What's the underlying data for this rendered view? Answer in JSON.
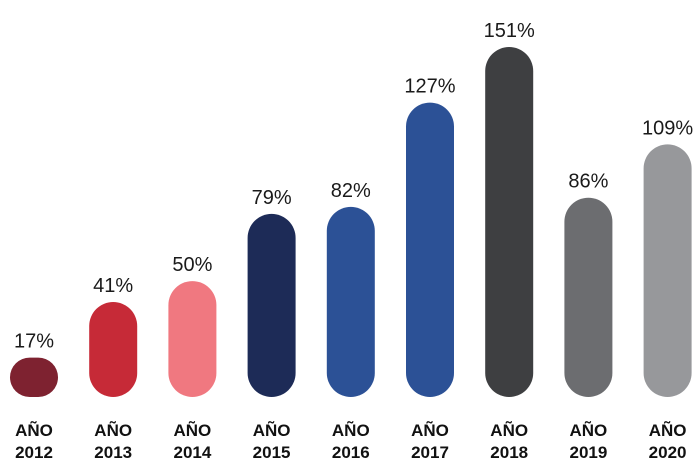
{
  "chart_data": {
    "type": "bar",
    "categories": [
      [
        "AÑO",
        "2012"
      ],
      [
        "AÑO",
        "2013"
      ],
      [
        "AÑO",
        "2014"
      ],
      [
        "AÑO",
        "2015"
      ],
      [
        "AÑO",
        "2016"
      ],
      [
        "AÑO",
        "2017"
      ],
      [
        "AÑO",
        "2018"
      ],
      [
        "AÑO",
        "2019"
      ],
      [
        "AÑO",
        "2020"
      ]
    ],
    "values": [
      17,
      41,
      50,
      79,
      82,
      127,
      151,
      86,
      109
    ],
    "value_labels": [
      "17%",
      "41%",
      "50%",
      "79%",
      "82%",
      "127%",
      "151%",
      "86%",
      "109%"
    ],
    "unit": "%",
    "colors": [
      "#7e2230",
      "#c62a37",
      "#f07880",
      "#1d2b57",
      "#2c5196",
      "#2c5196",
      "#3e3f41",
      "#6c6d70",
      "#97989b"
    ],
    "title": "",
    "xlabel": "",
    "ylabel": "",
    "ylim": [
      0,
      151
    ],
    "grid": false,
    "legend": "none",
    "bar_style": "rounded-capsule"
  }
}
